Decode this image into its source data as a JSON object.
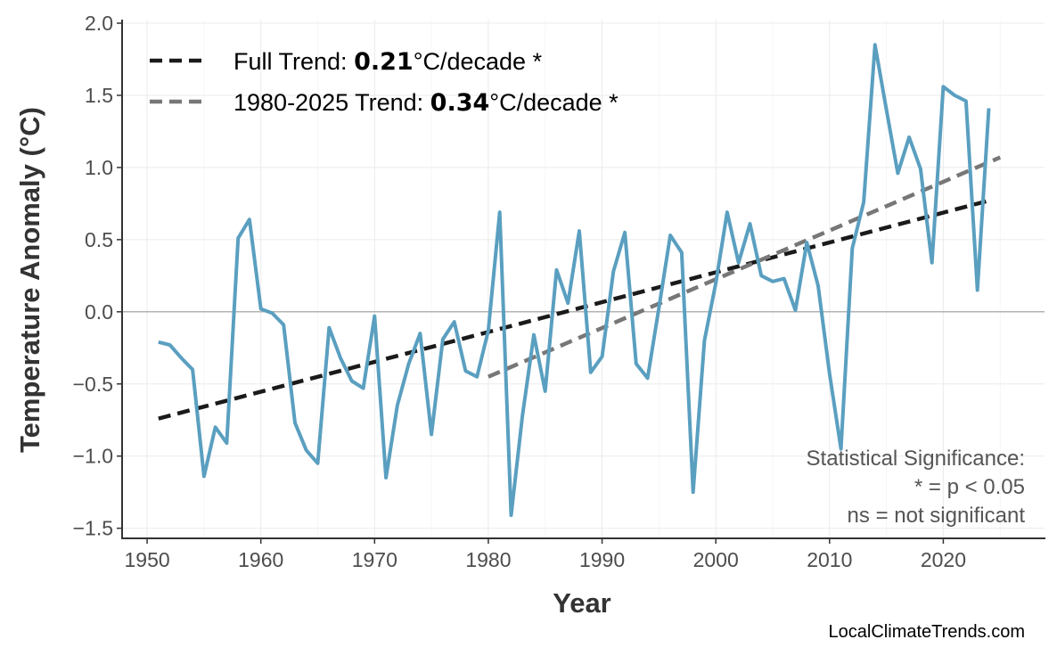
{
  "chart_data": {
    "type": "line",
    "xlabel": "Year",
    "ylabel": "Temperature Anomaly (°C)",
    "xlim": [
      1947.8,
      2028.9
    ],
    "ylim": [
      -1.57,
      2.0
    ],
    "xticks": [
      1950,
      1960,
      1970,
      1980,
      1990,
      2000,
      2010,
      2020
    ],
    "yticks": [
      -1.5,
      -1.0,
      -0.5,
      0.0,
      0.5,
      1.0,
      1.5,
      2.0
    ],
    "ytick_labels": [
      "−1.5",
      "−1.0",
      "−0.5",
      "0.0",
      "0.5",
      "1.0",
      "1.5",
      "2.0"
    ],
    "grid": true,
    "zero_line": true,
    "colors": {
      "series": "#5a9fc0",
      "full_trend": "#1a1a1a",
      "recent_trend": "#777777"
    },
    "x": [
      1951,
      1952,
      1953,
      1954,
      1955,
      1956,
      1957,
      1958,
      1959,
      1960,
      1961,
      1962,
      1963,
      1964,
      1965,
      1966,
      1967,
      1968,
      1969,
      1970,
      1971,
      1972,
      1973,
      1974,
      1975,
      1976,
      1977,
      1978,
      1979,
      1980,
      1981,
      1982,
      1983,
      1984,
      1985,
      1986,
      1987,
      1988,
      1989,
      1990,
      1991,
      1992,
      1993,
      1994,
      1995,
      1996,
      1997,
      1998,
      1999,
      2000,
      2001,
      2002,
      2003,
      2004,
      2005,
      2006,
      2007,
      2008,
      2009,
      2010,
      2011,
      2012,
      2013,
      2014,
      2015,
      2016,
      2017,
      2018,
      2019,
      2020,
      2021,
      2022,
      2023,
      2024
    ],
    "y": [
      -0.21,
      -0.23,
      -0.32,
      -0.4,
      -1.14,
      -0.8,
      -0.91,
      0.51,
      0.64,
      0.02,
      -0.01,
      -0.09,
      -0.77,
      -0.96,
      -1.05,
      -0.11,
      -0.32,
      -0.48,
      -0.53,
      -0.03,
      -1.15,
      -0.65,
      -0.36,
      -0.15,
      -0.85,
      -0.19,
      -0.07,
      -0.41,
      -0.45,
      -0.13,
      0.69,
      -1.41,
      -0.72,
      -0.16,
      -0.55,
      0.29,
      0.06,
      0.56,
      -0.42,
      -0.31,
      0.28,
      0.55,
      -0.36,
      -0.46,
      0.03,
      0.53,
      0.41,
      -1.25,
      -0.2,
      0.2,
      0.69,
      0.34,
      0.61,
      0.25,
      0.21,
      0.23,
      0.01,
      0.48,
      0.18,
      -0.43,
      -0.95,
      0.44,
      0.76,
      1.85,
      1.4,
      0.96,
      1.21,
      0.99,
      0.34,
      1.56,
      1.5,
      1.46,
      0.15,
      1.41
    ],
    "trends": [
      {
        "name": "Full Trend",
        "x": [
          1951,
          2024
        ],
        "y": [
          -0.74,
          0.77
        ],
        "legend_prefix": "Full Trend: ",
        "legend_value": "0.21",
        "legend_suffix": "°C/decade *"
      },
      {
        "name": "1980-2025 Trend",
        "x": [
          1980,
          2025
        ],
        "y": [
          -0.45,
          1.07
        ],
        "legend_prefix": "1980-2025 Trend: ",
        "legend_value": "0.34",
        "legend_suffix": "°C/decade *"
      }
    ],
    "legend_position": "top-left",
    "annotation": [
      "Statistical Significance:",
      "* = p < 0.05",
      "ns = not significant"
    ]
  },
  "source": "LocalClimateTrends.com"
}
